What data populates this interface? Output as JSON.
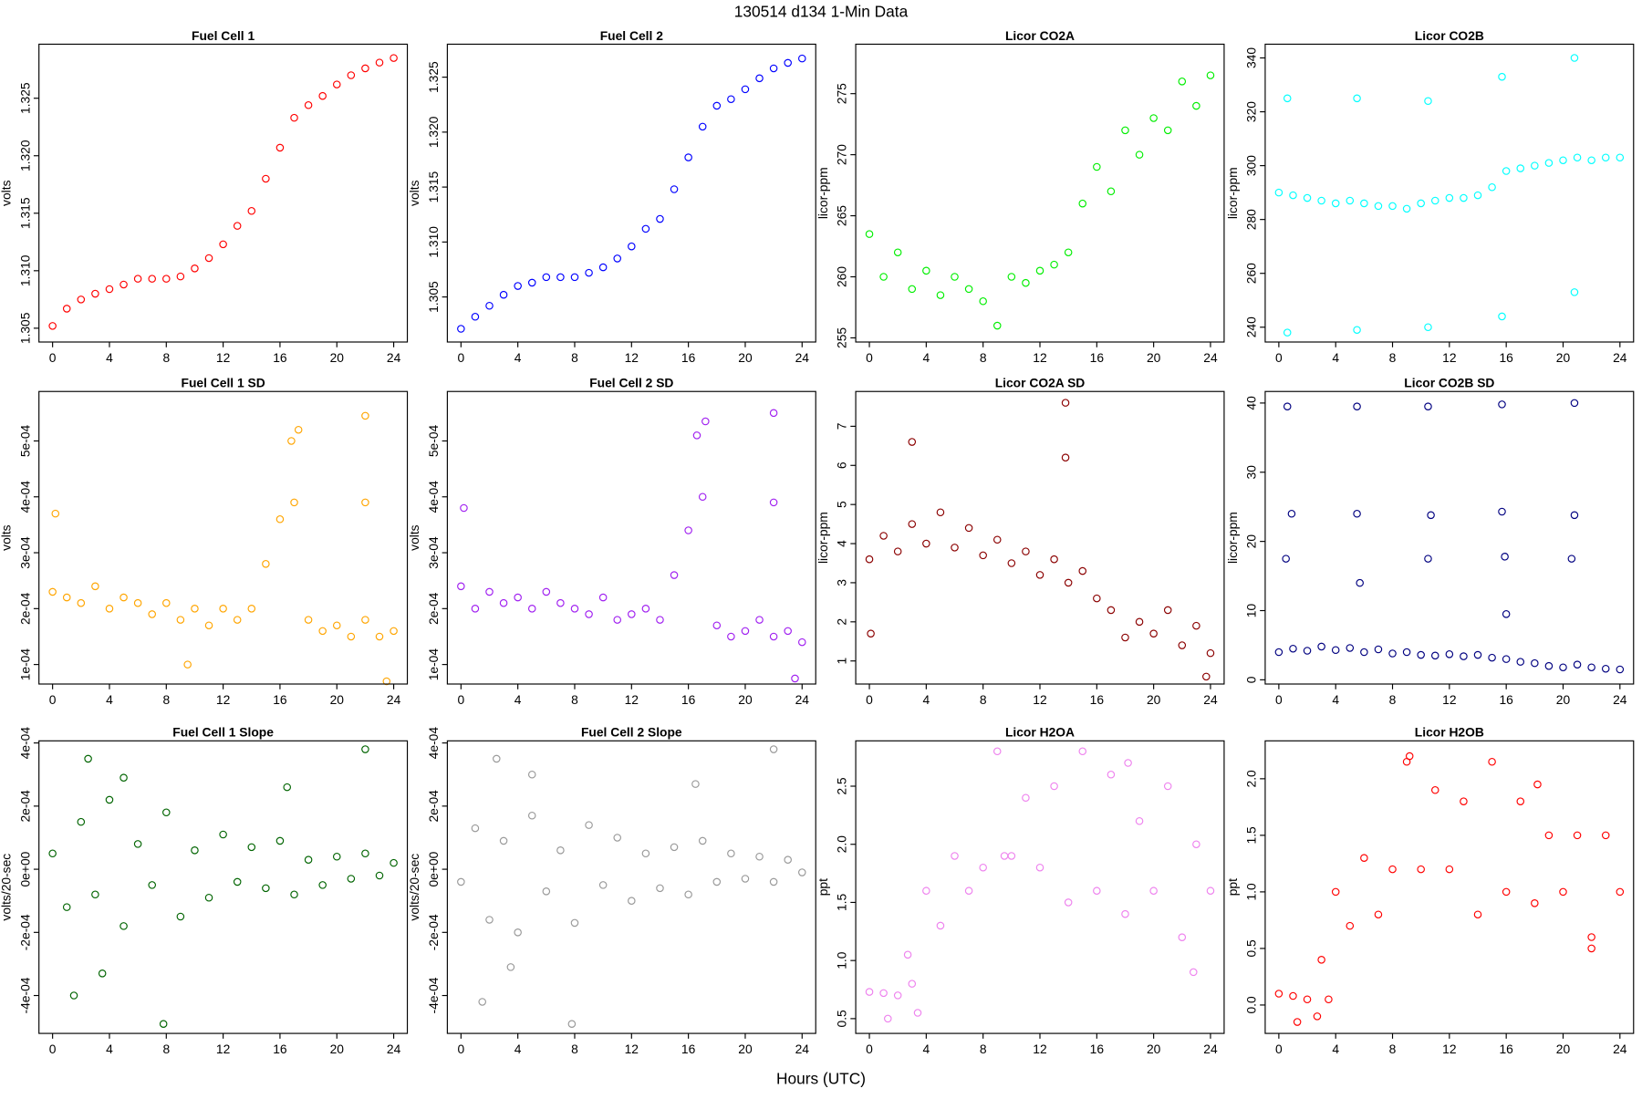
{
  "title": "130514   d134   1-Min Data",
  "xlabel": "Hours (UTC)",
  "chart_data": [
    {
      "type": "scatter",
      "title": "Fuel Cell 1",
      "ylabel": "volts",
      "color": "#ff0000",
      "x": [
        0,
        1,
        2,
        3,
        4,
        5,
        6,
        7,
        8,
        9,
        10,
        11,
        12,
        13,
        14,
        15,
        16,
        17,
        18,
        19,
        20,
        21,
        22,
        23,
        24
      ],
      "y": [
        1.3052,
        1.3067,
        1.3075,
        1.308,
        1.3084,
        1.3088,
        1.3093,
        1.3093,
        1.3093,
        1.3095,
        1.3102,
        1.3111,
        1.3123,
        1.3139,
        1.3152,
        1.318,
        1.3207,
        1.3233,
        1.3244,
        1.3252,
        1.3262,
        1.327,
        1.3276,
        1.3281,
        1.3285
      ],
      "xlim": [
        -0.96,
        24.96
      ],
      "ylim": [
        1.3038,
        1.3297
      ],
      "xticks": [
        0,
        4,
        8,
        12,
        16,
        20,
        24
      ],
      "yticks": [
        1.305,
        {
          "value": 1.31,
          "label": "1.310"
        },
        1.315,
        {
          "value": 1.32,
          "label": "1.320"
        },
        1.325
      ]
    },
    {
      "type": "scatter",
      "title": "Fuel Cell 2",
      "ylabel": "volts",
      "color": "#0000ff",
      "x": [
        0,
        1,
        2,
        3,
        4,
        5,
        6,
        7,
        8,
        9,
        10,
        11,
        12,
        13,
        14,
        15,
        16,
        17,
        18,
        19,
        20,
        21,
        22,
        23,
        24
      ],
      "y": [
        1.3021,
        1.3032,
        1.3042,
        1.3052,
        1.306,
        1.3063,
        1.3068,
        1.3068,
        1.3068,
        1.3072,
        1.3077,
        1.3085,
        1.3096,
        1.3112,
        1.3121,
        1.3148,
        1.3177,
        1.3205,
        1.3224,
        1.323,
        1.3239,
        1.3249,
        1.3258,
        1.3263,
        1.3267
      ],
      "xlim": [
        -0.96,
        24.96
      ],
      "ylim": [
        1.3009,
        1.328
      ],
      "xticks": [
        0,
        4,
        8,
        12,
        16,
        20,
        24
      ],
      "yticks": [
        1.305,
        {
          "value": 1.31,
          "label": "1.310"
        },
        1.315,
        {
          "value": 1.32,
          "label": "1.320"
        },
        1.325
      ]
    },
    {
      "type": "scatter",
      "title": "Licor CO2A",
      "ylabel": "licor-ppm",
      "color": "#00ee00",
      "x": [
        0,
        1,
        2,
        3,
        4,
        5,
        6,
        7,
        8,
        9,
        10,
        11,
        12,
        13,
        14,
        15,
        16,
        17,
        18,
        19,
        20,
        21,
        22,
        23,
        24
      ],
      "y": [
        263.5,
        260,
        262,
        259,
        260.5,
        258.5,
        260,
        259,
        258,
        256,
        260,
        259.5,
        260.5,
        261,
        262,
        266,
        269,
        267,
        272,
        270,
        273,
        272,
        276,
        274,
        276.5
      ],
      "xlim": [
        -0.96,
        24.96
      ],
      "ylim": [
        254.66,
        279.05
      ],
      "xticks": [
        0,
        4,
        8,
        12,
        16,
        20,
        24
      ],
      "yticks": [
        255,
        260,
        265,
        270,
        275
      ]
    },
    {
      "type": "scatter",
      "title": "Licor CO2B",
      "ylabel": "licor-ppm",
      "color": "#00ffff",
      "x": [
        0,
        1,
        2,
        3,
        4,
        5,
        6,
        7,
        8,
        9,
        10,
        11,
        12,
        13,
        14,
        15,
        16,
        17,
        18,
        19,
        20,
        21,
        22,
        23,
        24,
        0.6,
        0.6,
        5.5,
        5.5,
        10.5,
        10.5,
        15.7,
        15.7,
        20.8,
        20.8
      ],
      "y": [
        290,
        289,
        288,
        287,
        286,
        287,
        286,
        285,
        285,
        284,
        286,
        287,
        288,
        288,
        289,
        292,
        298,
        299,
        300,
        301,
        302,
        303,
        302,
        303,
        303,
        325,
        238,
        325,
        239,
        324,
        240,
        333,
        244,
        340,
        253
      ],
      "xlim": [
        -0.96,
        24.96
      ],
      "ylim": [
        234.5,
        345.1
      ],
      "xticks": [
        0,
        4,
        8,
        12,
        16,
        20,
        24
      ],
      "yticks": [
        240,
        260,
        280,
        300,
        320,
        340
      ]
    },
    {
      "type": "scatter",
      "title": "Fuel Cell 1 SD",
      "ylabel": "volts",
      "color": "#ffa500",
      "x": [
        0,
        1,
        2,
        3,
        4,
        5,
        6,
        7,
        8,
        9,
        10,
        11,
        12,
        13,
        14,
        15,
        16,
        17,
        18,
        19,
        20,
        21,
        22,
        23,
        24,
        16.8,
        17.3,
        22,
        22,
        0.2,
        9.5,
        23.5
      ],
      "y": [
        0.00023,
        0.00022,
        0.00021,
        0.00024,
        0.0002,
        0.00022,
        0.00021,
        0.00019,
        0.00021,
        0.00018,
        0.0002,
        0.00017,
        0.0002,
        0.00018,
        0.0002,
        0.00028,
        0.00036,
        0.00039,
        0.00018,
        0.00016,
        0.00017,
        0.00015,
        0.00018,
        0.00015,
        0.00016,
        0.0005,
        0.00052,
        0.000545,
        0.00039,
        0.00037,
        0.0001,
        7e-05
      ],
      "xlim": [
        -0.96,
        24.96
      ],
      "ylim": [
        6.51e-05,
        0.0005885
      ],
      "xticks": [
        0,
        4,
        8,
        12,
        16,
        20,
        24
      ],
      "yticks": [
        {
          "value": 0.0001,
          "label": "1e-04"
        },
        {
          "value": 0.0002,
          "label": "2e-04"
        },
        {
          "value": 0.0003,
          "label": "3e-04"
        },
        {
          "value": 0.0004,
          "label": "4e-04"
        },
        {
          "value": 0.0005,
          "label": "5e-04"
        }
      ]
    },
    {
      "type": "scatter",
      "title": "Fuel Cell 2 SD",
      "ylabel": "volts",
      "color": "#a020f0",
      "x": [
        0,
        1,
        2,
        3,
        4,
        5,
        6,
        7,
        8,
        9,
        10,
        11,
        12,
        13,
        14,
        15,
        16,
        17,
        18,
        19,
        20,
        21,
        22,
        23,
        24,
        16.6,
        17.2,
        22,
        22,
        0.2,
        23.5
      ],
      "y": [
        0.00024,
        0.0002,
        0.00023,
        0.00021,
        0.00022,
        0.0002,
        0.00023,
        0.00021,
        0.0002,
        0.00019,
        0.00022,
        0.00018,
        0.00019,
        0.0002,
        0.00018,
        0.00026,
        0.00034,
        0.0004,
        0.00017,
        0.00015,
        0.00016,
        0.00018,
        0.00015,
        0.00016,
        0.00014,
        0.00051,
        0.000535,
        0.00055,
        0.00039,
        0.00038,
        7.5e-05
      ],
      "xlim": [
        -0.96,
        24.96
      ],
      "ylim": [
        6.51e-05,
        0.0005885
      ],
      "xticks": [
        0,
        4,
        8,
        12,
        16,
        20,
        24
      ],
      "yticks": [
        {
          "value": 0.0001,
          "label": "1e-04"
        },
        {
          "value": 0.0002,
          "label": "2e-04"
        },
        {
          "value": 0.0003,
          "label": "3e-04"
        },
        {
          "value": 0.0004,
          "label": "4e-04"
        },
        {
          "value": 0.0005,
          "label": "5e-04"
        }
      ]
    },
    {
      "type": "scatter",
      "title": "Licor CO2A SD",
      "ylabel": "licor-ppm",
      "color": "#8b0000",
      "x": [
        0,
        1,
        2,
        3,
        4,
        5,
        6,
        7,
        8,
        9,
        10,
        11,
        12,
        13,
        14,
        15,
        16,
        17,
        18,
        19,
        20,
        21,
        22,
        23,
        24,
        13.8,
        13.8,
        3,
        0.1,
        23.7
      ],
      "y": [
        3.6,
        4.2,
        3.8,
        4.5,
        4,
        4.8,
        3.9,
        4.4,
        3.7,
        4.1,
        3.5,
        3.8,
        3.2,
        3.6,
        3,
        3.3,
        2.6,
        2.3,
        1.6,
        2,
        1.7,
        2.3,
        1.4,
        1.9,
        1.2,
        7.6,
        6.2,
        6.6,
        1.7,
        0.6
      ],
      "xlim": [
        -0.96,
        24.96
      ],
      "ylim": [
        0.41,
        7.89
      ],
      "xticks": [
        0,
        4,
        8,
        12,
        16,
        20,
        24
      ],
      "yticks": [
        1,
        2,
        3,
        4,
        5,
        6,
        7
      ]
    },
    {
      "type": "scatter",
      "title": "Licor CO2B SD",
      "ylabel": "licor-ppm",
      "color": "#000080",
      "x": [
        0,
        1,
        2,
        3,
        4,
        5,
        6,
        7,
        8,
        9,
        10,
        11,
        12,
        13,
        14,
        15,
        16,
        17,
        18,
        19,
        20,
        21,
        22,
        23,
        24,
        0.6,
        0.9,
        0.5,
        5.5,
        5.5,
        5.7,
        10.5,
        10.7,
        10.5,
        15.7,
        15.7,
        15.9,
        16,
        20.8,
        20.8,
        20.6
      ],
      "y": [
        4,
        4.5,
        4.2,
        4.8,
        4.3,
        4.6,
        4,
        4.4,
        3.8,
        4,
        3.6,
        3.5,
        3.7,
        3.4,
        3.6,
        3.2,
        3,
        2.6,
        2.4,
        2,
        1.8,
        2.2,
        1.8,
        1.6,
        1.5,
        39.5,
        24,
        17.5,
        39.5,
        24,
        14,
        39.5,
        23.8,
        17.5,
        39.8,
        24.3,
        17.8,
        9.5,
        40,
        23.8,
        17.5
      ],
      "xlim": [
        -0.96,
        24.96
      ],
      "ylim": [
        -0.61,
        41.67
      ],
      "xticks": [
        0,
        4,
        8,
        12,
        16,
        20,
        24
      ],
      "yticks": [
        0,
        10,
        20,
        30,
        40
      ]
    },
    {
      "type": "scatter",
      "title": "Fuel Cell 1 Slope",
      "ylabel": "volts/20-sec",
      "color": "#006400",
      "x": [
        0,
        1,
        2,
        3,
        4,
        5,
        6,
        7,
        8,
        9,
        10,
        11,
        12,
        13,
        14,
        15,
        16,
        17,
        18,
        19,
        20,
        21,
        22,
        23,
        24,
        2.5,
        22,
        1.5,
        7.8,
        5,
        16.5,
        3.5
      ],
      "y": [
        5e-05,
        -0.00012,
        0.00015,
        -8e-05,
        0.00022,
        -0.00018,
        8e-05,
        -5e-05,
        0.00018,
        -0.00015,
        6e-05,
        -9e-05,
        0.00011,
        -4e-05,
        7e-05,
        -6e-05,
        9e-05,
        -8e-05,
        3e-05,
        -5e-05,
        4e-05,
        -3e-05,
        5e-05,
        -2e-05,
        2e-05,
        0.00035,
        0.00038,
        -0.0004,
        -0.00049,
        0.00029,
        0.00026,
        -0.00033
      ],
      "xlim": [
        -0.96,
        24.96
      ],
      "ylim": [
        -0.00052,
        0.0004067
      ],
      "xticks": [
        0,
        4,
        8,
        12,
        16,
        20,
        24
      ],
      "yticks": [
        {
          "value": -0.0004,
          "label": "-4e-04"
        },
        {
          "value": -0.0002,
          "label": "-2e-04"
        },
        {
          "value": 0,
          "label": "0e+00"
        },
        {
          "value": 0.0002,
          "label": "2e-04"
        },
        {
          "value": 0.0004,
          "label": "4e-04"
        }
      ]
    },
    {
      "type": "scatter",
      "title": "Fuel Cell 2 Slope",
      "ylabel": "volts/20-sec",
      "color": "#999999",
      "x": [
        0,
        1,
        2,
        3,
        4,
        5,
        6,
        7,
        8,
        9,
        10,
        11,
        12,
        13,
        14,
        15,
        16,
        17,
        18,
        19,
        20,
        21,
        22,
        23,
        24,
        2.5,
        22,
        1.5,
        7.8,
        5,
        16.5,
        3.5
      ],
      "y": [
        -4e-05,
        0.00013,
        -0.00016,
        9e-05,
        -0.0002,
        0.00017,
        -7e-05,
        6e-05,
        -0.00017,
        0.00014,
        -5e-05,
        0.0001,
        -0.0001,
        5e-05,
        -6e-05,
        7e-05,
        -8e-05,
        9e-05,
        -4e-05,
        5e-05,
        -3e-05,
        4e-05,
        -4e-05,
        3e-05,
        -1e-05,
        0.00035,
        0.00038,
        -0.00042,
        -0.00049,
        0.0003,
        0.00027,
        -0.00031
      ],
      "xlim": [
        -0.96,
        24.96
      ],
      "ylim": [
        -0.00052,
        0.0004067
      ],
      "xticks": [
        0,
        4,
        8,
        12,
        16,
        20,
        24
      ],
      "yticks": [
        {
          "value": -0.0004,
          "label": "-4e-04"
        },
        {
          "value": -0.0002,
          "label": "-2e-04"
        },
        {
          "value": 0,
          "label": "0e+00"
        },
        {
          "value": 0.0002,
          "label": "2e-04"
        },
        {
          "value": 0.0004,
          "label": "4e-04"
        }
      ]
    },
    {
      "type": "scatter",
      "title": "Licor H2OA",
      "ylabel": "ppt",
      "color": "#ee82ee",
      "x": [
        0,
        1,
        2,
        3,
        4,
        5,
        6,
        7,
        8,
        9,
        10,
        11,
        12,
        13,
        14,
        15,
        16,
        17,
        18,
        19,
        20,
        21,
        22,
        23,
        24,
        2.7,
        3.4,
        1.3,
        9.5,
        18.2,
        22.8
      ],
      "y": [
        0.73,
        0.72,
        0.7,
        0.8,
        1.6,
        1.3,
        1.9,
        1.6,
        1.8,
        2.8,
        1.9,
        2.4,
        1.8,
        2.5,
        1.5,
        2.8,
        1.6,
        2.6,
        1.4,
        2.2,
        1.6,
        2.5,
        1.2,
        2,
        1.6,
        1.05,
        0.55,
        0.5,
        1.9,
        2.7,
        0.9
      ],
      "xlim": [
        -0.96,
        24.96
      ],
      "ylim": [
        0.373,
        2.89
      ],
      "xticks": [
        0,
        4,
        8,
        12,
        16,
        20,
        24
      ],
      "yticks": [
        0.5,
        {
          "value": 1,
          "label": "1.0"
        },
        1.5,
        {
          "value": 2,
          "label": "2.0"
        },
        2.5
      ]
    },
    {
      "type": "scatter",
      "title": "Licor H2OB",
      "ylabel": "ppt",
      "color": "#ff0000",
      "x": [
        0,
        1,
        2,
        3,
        4,
        5,
        6,
        7,
        8,
        9,
        10,
        11,
        12,
        13,
        14,
        15,
        16,
        17,
        18,
        19,
        20,
        21,
        22,
        23,
        24,
        1.3,
        2.7,
        3.5,
        9.2,
        18.2,
        22
      ],
      "y": [
        0.1,
        0.08,
        0.05,
        0.4,
        1,
        0.7,
        1.3,
        0.8,
        1.2,
        2.15,
        1.2,
        1.9,
        1.2,
        1.8,
        0.8,
        2.15,
        1,
        1.8,
        0.9,
        1.5,
        1,
        1.5,
        0.6,
        1.5,
        1,
        -0.15,
        -0.1,
        0.05,
        2.2,
        1.95,
        0.5
      ],
      "xlim": [
        -0.96,
        24.96
      ],
      "ylim": [
        -0.251,
        2.335
      ],
      "xticks": [
        0,
        4,
        8,
        12,
        16,
        20,
        24
      ],
      "yticks": [
        {
          "value": 0,
          "label": "0.0"
        },
        0.5,
        {
          "value": 1,
          "label": "1.0"
        },
        1.5,
        {
          "value": 2,
          "label": "2.0"
        }
      ]
    }
  ]
}
